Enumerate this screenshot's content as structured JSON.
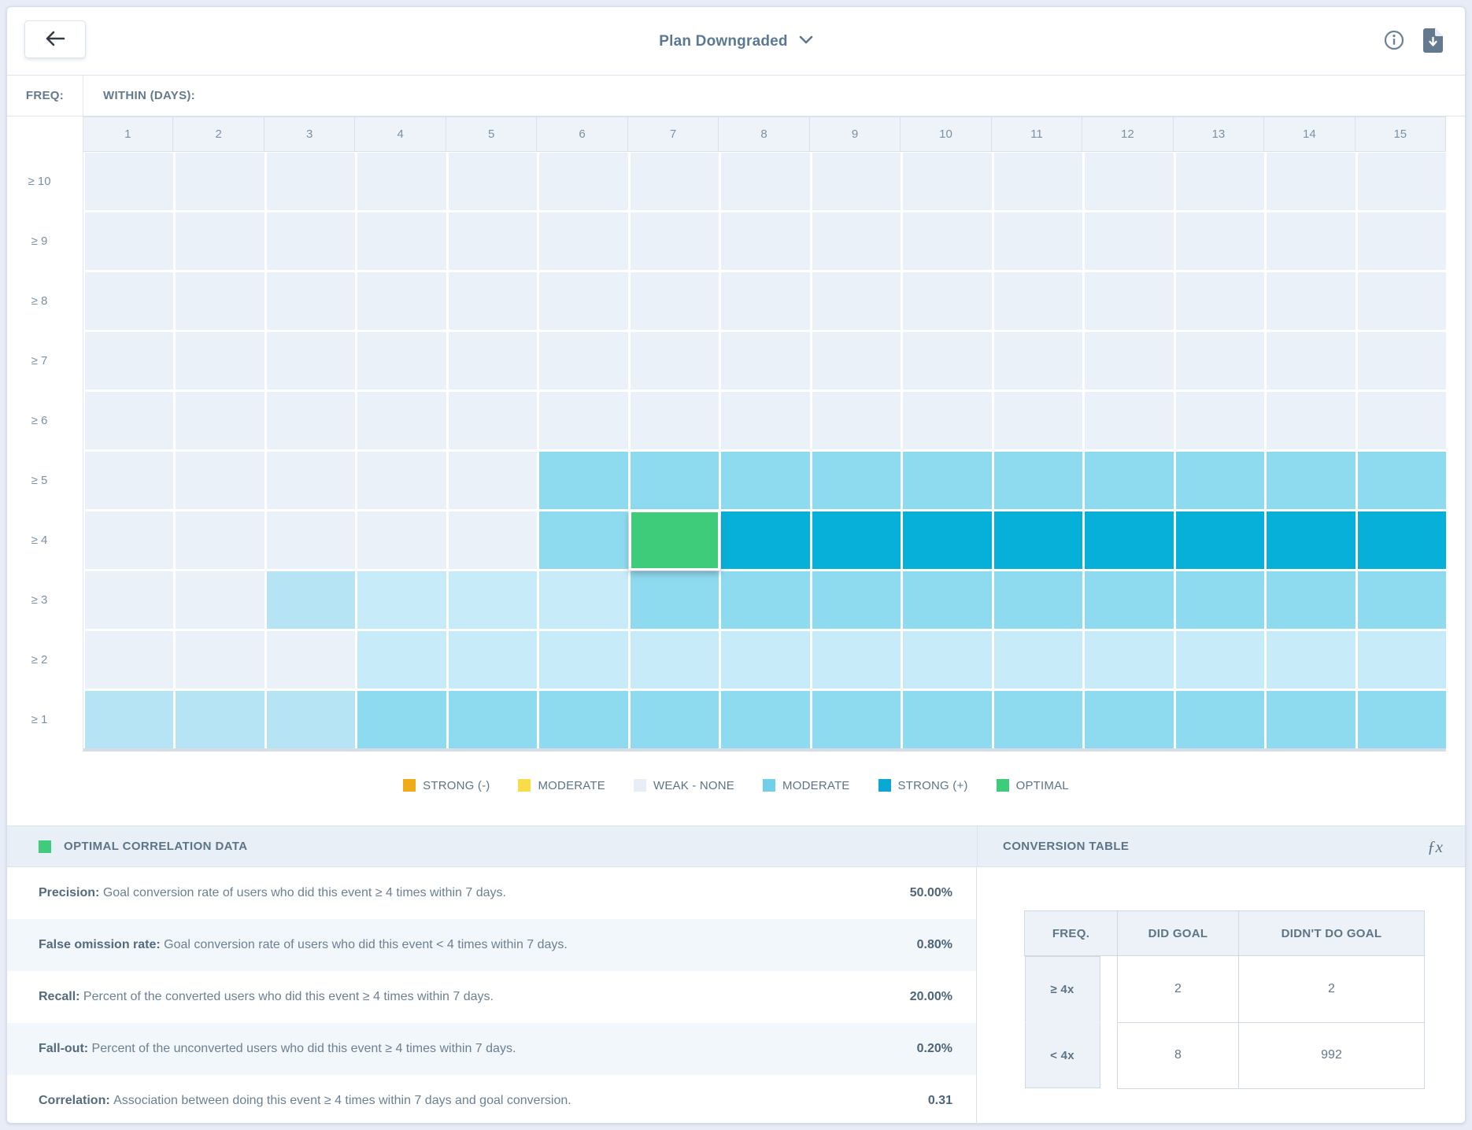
{
  "topbar": {
    "title": "Plan Downgraded",
    "icons": {
      "back": "arrow-left",
      "caret": "chevron-down",
      "info": "info-circle",
      "export": "file-download"
    }
  },
  "axis": {
    "freq_label": "FREQ:",
    "within_label": "WITHIN (DAYS):",
    "columns": [
      "1",
      "2",
      "3",
      "4",
      "5",
      "6",
      "7",
      "8",
      "9",
      "10",
      "11",
      "12",
      "13",
      "14",
      "15"
    ]
  },
  "colors": {
    "cells": {
      "w": "#eaf1f8",
      "l": "#c7ebf8",
      "l2": "#b7e4f4",
      "m": "#8edbf0",
      "s": "#07b0d8",
      "o": "#3ecb7a"
    },
    "legend": {
      "strong_neg": "#f0ab18",
      "moderate_yellow": "#f8dd49",
      "weak": "#e8eef6",
      "moderate_blue": "#72cfea",
      "strong_pos": "#0aa9d3",
      "optimal": "#3ecb7a"
    }
  },
  "chart_data": {
    "type": "heatmap",
    "xlabel": "WITHIN (DAYS):",
    "ylabel": "FREQ:",
    "x": [
      "1",
      "2",
      "3",
      "4",
      "5",
      "6",
      "7",
      "8",
      "9",
      "10",
      "11",
      "12",
      "13",
      "14",
      "15"
    ],
    "level_meaning": {
      "w": "weak-none",
      "l": "weak-low",
      "l2": "weak-low+",
      "m": "moderate",
      "s": "strong-positive",
      "o": "optimal"
    },
    "rows": [
      {
        "label": "≥ 10",
        "cells": [
          "w",
          "w",
          "w",
          "w",
          "w",
          "w",
          "w",
          "w",
          "w",
          "w",
          "w",
          "w",
          "w",
          "w",
          "w"
        ]
      },
      {
        "label": "≥ 9",
        "cells": [
          "w",
          "w",
          "w",
          "w",
          "w",
          "w",
          "w",
          "w",
          "w",
          "w",
          "w",
          "w",
          "w",
          "w",
          "w"
        ]
      },
      {
        "label": "≥ 8",
        "cells": [
          "w",
          "w",
          "w",
          "w",
          "w",
          "w",
          "w",
          "w",
          "w",
          "w",
          "w",
          "w",
          "w",
          "w",
          "w"
        ]
      },
      {
        "label": "≥ 7",
        "cells": [
          "w",
          "w",
          "w",
          "w",
          "w",
          "w",
          "w",
          "w",
          "w",
          "w",
          "w",
          "w",
          "w",
          "w",
          "w"
        ]
      },
      {
        "label": "≥ 6",
        "cells": [
          "w",
          "w",
          "w",
          "w",
          "w",
          "w",
          "w",
          "w",
          "w",
          "w",
          "w",
          "w",
          "w",
          "w",
          "w"
        ]
      },
      {
        "label": "≥ 5",
        "cells": [
          "w",
          "w",
          "w",
          "w",
          "w",
          "m",
          "m",
          "m",
          "m",
          "m",
          "m",
          "m",
          "m",
          "m",
          "m"
        ]
      },
      {
        "label": "≥ 4",
        "cells": [
          "w",
          "w",
          "w",
          "w",
          "w",
          "m",
          "o",
          "s",
          "s",
          "s",
          "s",
          "s",
          "s",
          "s",
          "s"
        ]
      },
      {
        "label": "≥ 3",
        "cells": [
          "w",
          "w",
          "l2",
          "l",
          "l",
          "l",
          "m",
          "m",
          "m",
          "m",
          "m",
          "m",
          "m",
          "m",
          "m"
        ]
      },
      {
        "label": "≥ 2",
        "cells": [
          "w",
          "w",
          "w",
          "l",
          "l",
          "l",
          "l",
          "l",
          "l",
          "l",
          "l",
          "l",
          "l",
          "l",
          "l"
        ]
      },
      {
        "label": "≥ 1",
        "cells": [
          "l2",
          "l2",
          "l2",
          "m",
          "m",
          "m",
          "m",
          "m",
          "m",
          "m",
          "m",
          "m",
          "m",
          "m",
          "m"
        ]
      }
    ],
    "optimal_cell": {
      "freq": "≥ 4",
      "day": "7"
    }
  },
  "legend": {
    "items": [
      {
        "label": "STRONG (-)",
        "color": "#f0ab18",
        "pattern": false
      },
      {
        "label": "MODERATE",
        "color": "#f8dd49",
        "pattern": false
      },
      {
        "label": "WEAK - NONE",
        "color": "#e8eef6",
        "pattern": false
      },
      {
        "label": "MODERATE",
        "color": "#72cfea",
        "pattern": true
      },
      {
        "label": "STRONG (+)",
        "color": "#0aa9d3",
        "pattern": false
      },
      {
        "label": "OPTIMAL",
        "color": "#3ecb7a",
        "pattern": false
      }
    ]
  },
  "panels": {
    "optimal": {
      "title": "OPTIMAL CORRELATION DATA",
      "swatch_color": "#3ecb7a",
      "metrics": [
        {
          "name": "Precision: ",
          "desc": "Goal conversion rate of users who did this event ≥ 4 times within 7 days.",
          "value": "50.00%"
        },
        {
          "name": "False omission rate: ",
          "desc": "Goal conversion rate of users who did this event < 4 times within 7 days.",
          "value": "0.80%"
        },
        {
          "name": "Recall: ",
          "desc": "Percent of the converted users who did this event ≥ 4 times within 7 days.",
          "value": "20.00%"
        },
        {
          "name": "Fall-out: ",
          "desc": "Percent of the unconverted users who did this event ≥ 4 times within 7 days.",
          "value": "0.20%"
        },
        {
          "name": "Correlation: ",
          "desc": "Association between doing this event ≥ 4 times within 7 days and goal conversion.",
          "value": "0.31"
        }
      ]
    },
    "conversion": {
      "title": "CONVERSION TABLE",
      "fx_icon": "ƒx",
      "headers": [
        "FREQ.",
        "DID GOAL",
        "DIDN'T DO GOAL"
      ],
      "rows": [
        {
          "freq": "≥ 4x",
          "did": "2",
          "didnt": "2"
        },
        {
          "freq": "< 4x",
          "did": "8",
          "didnt": "992"
        }
      ]
    }
  }
}
